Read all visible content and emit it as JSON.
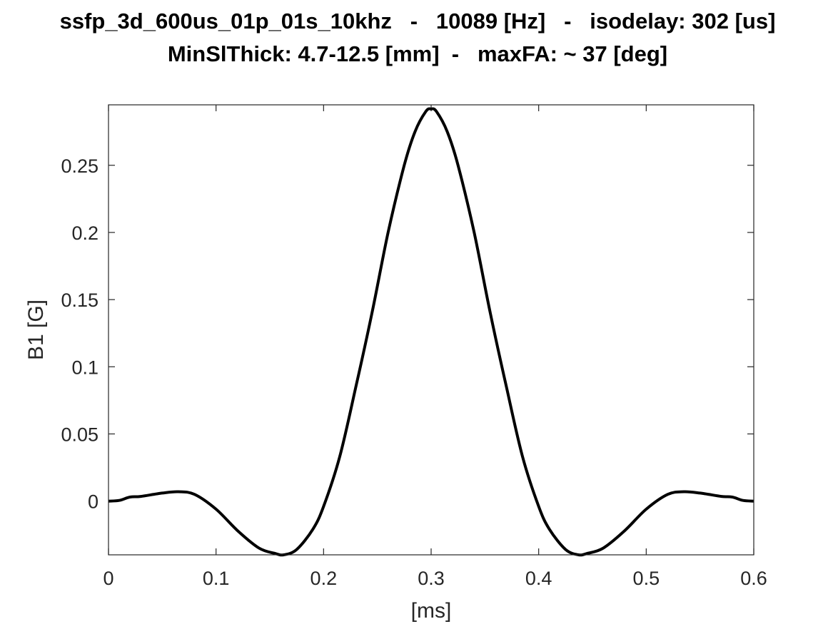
{
  "chart_data": {
    "type": "line",
    "title_lines": [
      "ssfp_3d_600us_01p_01s_10khz   -   10089 [Hz]   -   isodelay: 302 [us]",
      "MinSlThick: 4.7-12.5 [mm]  -   maxFA: ~ 37 [deg]"
    ],
    "xlabel": "[ms]",
    "ylabel": "B1 [G]",
    "xlim": [
      0,
      0.6
    ],
    "ylim": [
      -0.04,
      0.295
    ],
    "xticks": [
      "0",
      "0.1",
      "0.2",
      "0.3",
      "0.4",
      "0.5",
      "0.6"
    ],
    "yticks": [
      "0",
      "0.05",
      "0.1",
      "0.15",
      "0.2",
      "0.25"
    ],
    "grid": false,
    "line_color": "#000000",
    "series": [
      {
        "x": [
          0,
          0.01,
          0.02,
          0.03,
          0.05,
          0.065,
          0.08,
          0.1,
          0.12,
          0.14,
          0.155,
          0.163,
          0.175,
          0.19,
          0.2,
          0.215,
          0.23,
          0.245,
          0.26,
          0.275,
          0.285,
          0.295,
          0.3,
          0.305,
          0.315,
          0.325,
          0.34,
          0.355,
          0.37,
          0.385,
          0.4,
          0.41,
          0.425,
          0.437,
          0.445,
          0.46,
          0.48,
          0.5,
          0.52,
          0.535,
          0.55,
          0.57,
          0.58,
          0.59,
          0.6
        ],
        "y": [
          0,
          0.0005,
          0.003,
          0.0035,
          0.006,
          0.007,
          0.005,
          -0.006,
          -0.022,
          -0.035,
          -0.039,
          -0.04,
          -0.036,
          -0.021,
          -0.004,
          0.033,
          0.085,
          0.14,
          0.2,
          0.25,
          0.275,
          0.29,
          0.292,
          0.29,
          0.275,
          0.25,
          0.2,
          0.14,
          0.085,
          0.033,
          -0.004,
          -0.021,
          -0.036,
          -0.04,
          -0.039,
          -0.035,
          -0.022,
          -0.006,
          0.005,
          0.007,
          0.006,
          0.0035,
          0.003,
          0.0005,
          0
        ]
      }
    ]
  }
}
